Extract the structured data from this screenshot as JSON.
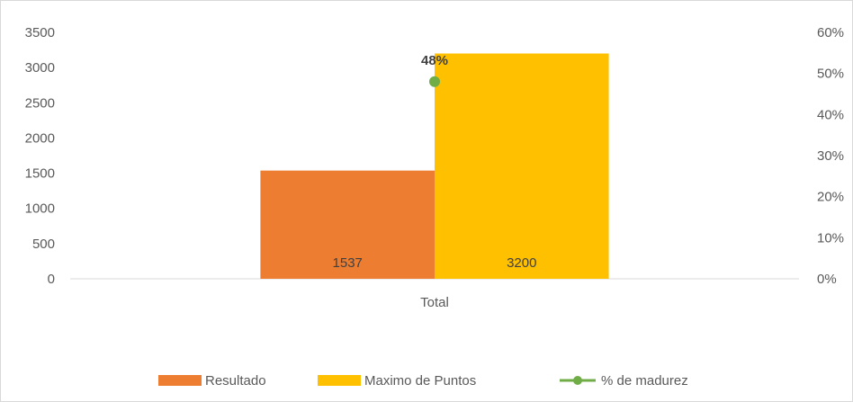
{
  "chart_data": {
    "type": "bar",
    "categories": [
      "Total"
    ],
    "series": [
      {
        "name": "Resultado",
        "type": "bar",
        "axis": "primary",
        "color": "#ED7D31",
        "values": [
          1537
        ],
        "data_labels": [
          "1537"
        ]
      },
      {
        "name": "Maximo de Puntos",
        "type": "bar",
        "axis": "primary",
        "color": "#FFC000",
        "values": [
          3200
        ],
        "data_labels": [
          "3200"
        ]
      },
      {
        "name": "% de madurez",
        "type": "line",
        "axis": "secondary",
        "color": "#70AD47",
        "values": [
          48
        ],
        "data_labels": [
          "48%"
        ]
      }
    ],
    "ylim": [
      0,
      3500
    ],
    "y_ticks": [
      "0",
      "500",
      "1000",
      "1500",
      "2000",
      "2500",
      "3000",
      "3500"
    ],
    "y2lim": [
      0,
      60
    ],
    "y2_ticks": [
      "0%",
      "10%",
      "20%",
      "30%",
      "40%",
      "50%",
      "60%"
    ],
    "grid": false,
    "legend_position": "bottom"
  }
}
